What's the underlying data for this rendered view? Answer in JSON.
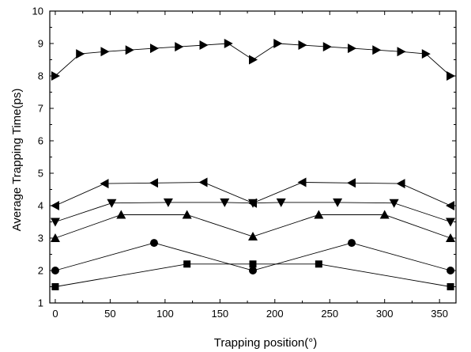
{
  "chart_data": {
    "type": "line",
    "xlabel": "Trapping position(°)",
    "ylabel": "Average Trapping Time(ps)",
    "xlim": [
      -5,
      365
    ],
    "ylim": [
      1,
      10
    ],
    "xticks": [
      0,
      50,
      100,
      150,
      200,
      250,
      300,
      350
    ],
    "yticks": [
      1,
      2,
      3,
      4,
      5,
      6,
      7,
      8,
      9,
      10
    ],
    "grid": false,
    "legend": "none",
    "series": [
      {
        "marker": "square",
        "x": [
          0,
          120,
          180,
          240,
          360
        ],
        "y": [
          1.5,
          2.2,
          2.2,
          2.2,
          1.5
        ]
      },
      {
        "marker": "circle",
        "x": [
          0,
          90,
          180,
          270,
          360
        ],
        "y": [
          2.0,
          2.85,
          2.0,
          2.85,
          2.0
        ]
      },
      {
        "marker": "triangle-up",
        "x": [
          0,
          60,
          120,
          180,
          240,
          300,
          360
        ],
        "y": [
          3.0,
          3.72,
          3.72,
          3.05,
          3.72,
          3.72,
          3.0
        ]
      },
      {
        "marker": "triangle-down",
        "x": [
          0,
          51.4,
          102.9,
          154.3,
          180,
          205.7,
          257.1,
          308.6,
          360
        ],
        "y": [
          3.5,
          4.08,
          4.1,
          4.1,
          4.08,
          4.1,
          4.1,
          4.08,
          3.5
        ]
      },
      {
        "marker": "triangle-left",
        "x": [
          0,
          45,
          90,
          135,
          180,
          225,
          270,
          315,
          360
        ],
        "y": [
          4.0,
          4.68,
          4.7,
          4.72,
          4.08,
          4.72,
          4.7,
          4.68,
          4.0
        ]
      },
      {
        "marker": "triangle-right",
        "x": [
          0,
          22.5,
          45,
          67.5,
          90,
          112.5,
          135,
          157.5,
          180,
          202.5,
          225,
          247.5,
          270,
          292.5,
          315,
          337.5,
          360
        ],
        "y": [
          8.0,
          8.68,
          8.75,
          8.8,
          8.85,
          8.9,
          8.95,
          9.0,
          8.5,
          9.0,
          8.95,
          8.9,
          8.85,
          8.8,
          8.75,
          8.68,
          8.0
        ]
      }
    ]
  }
}
